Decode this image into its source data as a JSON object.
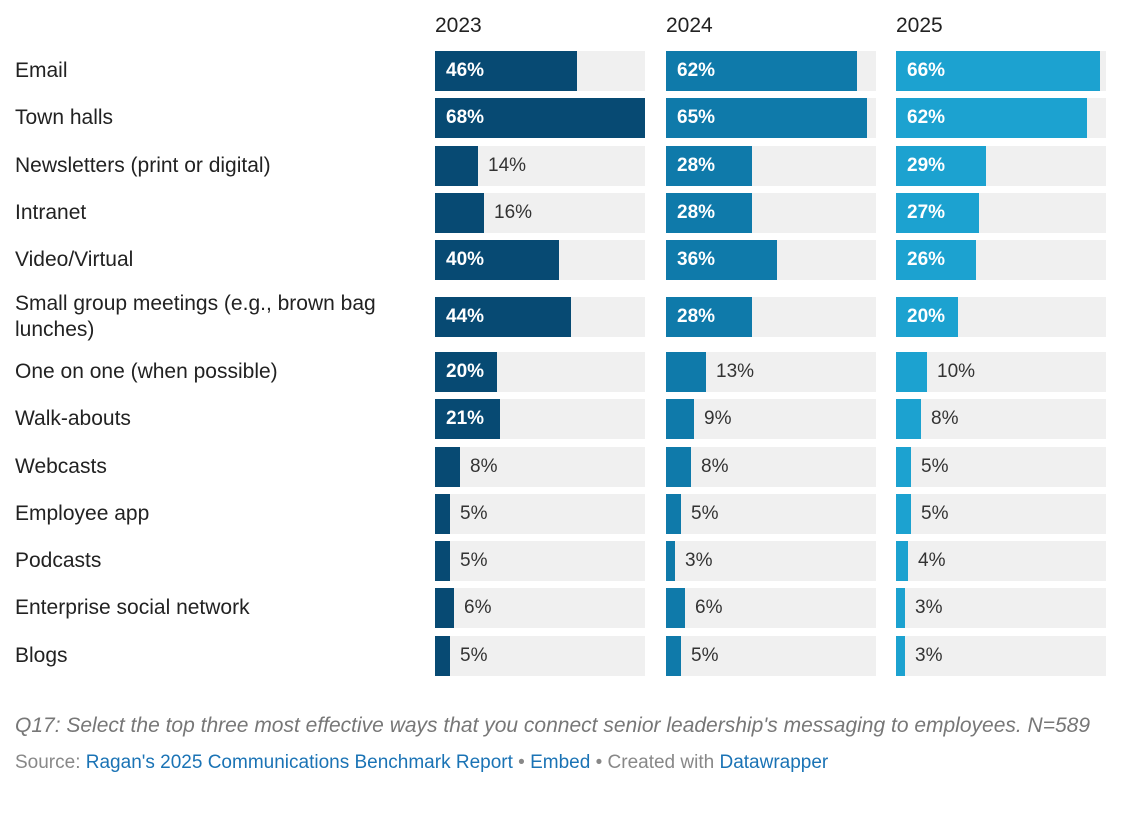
{
  "chart_data": {
    "type": "bar",
    "orientation": "horizontal",
    "layout": "small-multiples",
    "categories": [
      "Email",
      "Town halls",
      "Newsletters (print or digital)",
      "Intranet",
      "Video/Virtual",
      "Small group meetings (e.g., brown bag lunches)",
      "One on one (when possible)",
      "Walk-abouts",
      "Webcasts",
      "Employee app",
      "Podcasts",
      "Enterprise social network",
      "Blogs"
    ],
    "series": [
      {
        "name": "2023",
        "color": "#074a73",
        "values": [
          46,
          68,
          14,
          16,
          40,
          44,
          20,
          21,
          8,
          5,
          5,
          6,
          5
        ]
      },
      {
        "name": "2024",
        "color": "#0f7aaa",
        "values": [
          62,
          65,
          28,
          28,
          36,
          28,
          13,
          9,
          8,
          5,
          3,
          6,
          5
        ]
      },
      {
        "name": "2025",
        "color": "#1ca2d0",
        "values": [
          66,
          62,
          29,
          27,
          26,
          20,
          10,
          8,
          5,
          5,
          4,
          3,
          3
        ]
      }
    ],
    "xlim": [
      0,
      68
    ],
    "value_suffix": "%",
    "title": "",
    "xlabel": "",
    "ylabel": ""
  },
  "footer": {
    "question": "Q17: Select the top three most effective ways that you connect senior leadership's messaging to employees. N=589",
    "source_prefix": "Source:",
    "source_link": "Ragan's 2025 Communications Benchmark Report",
    "separator": "•",
    "embed_link": "Embed",
    "created_text": "• Created with",
    "datawrapper_link": "Datawrapper"
  }
}
